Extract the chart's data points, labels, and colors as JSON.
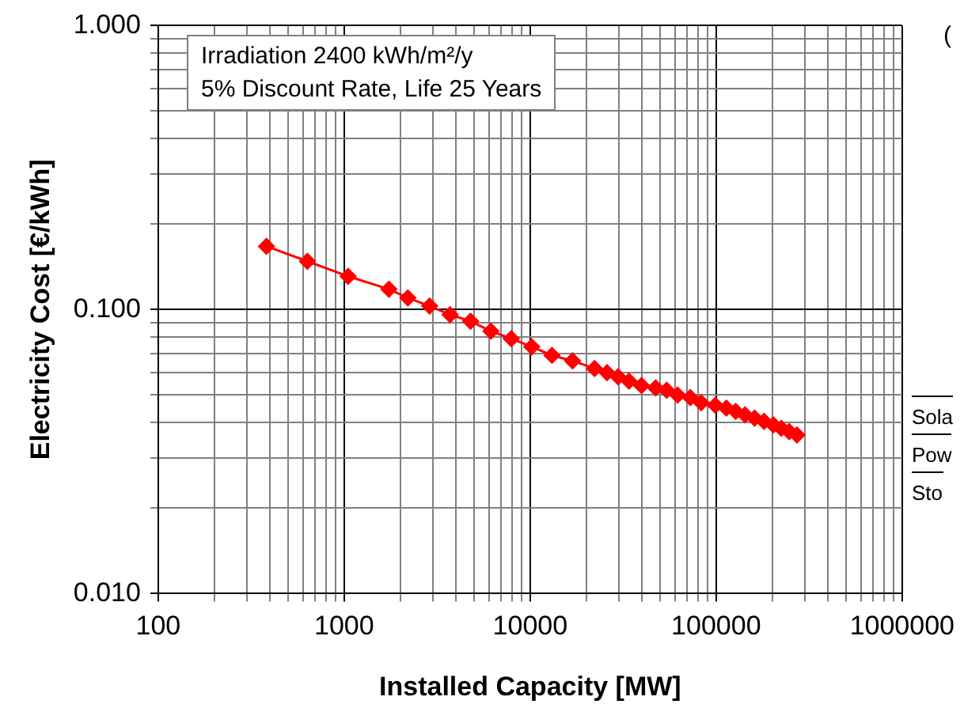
{
  "chart_data": {
    "type": "line",
    "xlabel": "Installed Capacity [MW]",
    "ylabel": "Electricity Cost [€/kWh]",
    "log": "xy",
    "grid": true,
    "legend": false,
    "marker": "diamond",
    "line_style": "solid",
    "annotations": [
      "Irradiation 2400 kWh/m²/y\n5% Discount Rate, Life 25 Years",
      "(",
      "Sola",
      "Pow",
      "Sto"
    ],
    "xlim": [
      100,
      1000000
    ],
    "ylim": [
      0.01,
      1
    ],
    "xticks": [
      100,
      {
        "value": 200,
        "label": null
      },
      {
        "value": 300,
        "label": null
      },
      {
        "value": 400,
        "label": null
      },
      {
        "value": 500,
        "label": null
      },
      {
        "value": 600,
        "label": null
      },
      {
        "value": 700,
        "label": null
      },
      {
        "value": 800,
        "label": null
      },
      {
        "value": 900,
        "label": null
      },
      1000,
      {
        "value": 2000,
        "label": null
      },
      {
        "value": 3000,
        "label": null
      },
      {
        "value": 4000,
        "label": null
      },
      {
        "value": 5000,
        "label": null
      },
      {
        "value": 6000,
        "label": null
      },
      {
        "value": 7000,
        "label": null
      },
      {
        "value": 8000,
        "label": null
      },
      {
        "value": 9000,
        "label": null
      },
      10000,
      {
        "value": 20000,
        "label": null
      },
      {
        "value": 30000,
        "label": null
      },
      {
        "value": 40000,
        "label": null
      },
      {
        "value": 50000,
        "label": null
      },
      {
        "value": 60000,
        "label": null
      },
      {
        "value": 70000,
        "label": null
      },
      {
        "value": 80000,
        "label": null
      },
      {
        "value": 90000,
        "label": null
      },
      100000,
      {
        "value": 200000,
        "label": null
      },
      {
        "value": 300000,
        "label": null
      },
      {
        "value": 400000,
        "label": null
      },
      {
        "value": 500000,
        "label": null
      },
      {
        "value": 600000,
        "label": null
      },
      {
        "value": 700000,
        "label": null
      },
      {
        "value": 800000,
        "label": null
      },
      {
        "value": 900000,
        "label": null
      },
      1000000
    ],
    "yticks": [
      {
        "value": 0.01,
        "label": "0.010"
      },
      {
        "value": 0.02,
        "label": null
      },
      {
        "value": 0.03,
        "label": null
      },
      {
        "value": 0.04,
        "label": null
      },
      {
        "value": 0.05,
        "label": null
      },
      {
        "value": 0.06,
        "label": null
      },
      {
        "value": 0.07,
        "label": null
      },
      {
        "value": 0.08,
        "label": null
      },
      {
        "value": 0.09,
        "label": null
      },
      {
        "value": 0.1,
        "label": "0.100"
      },
      {
        "value": 0.2,
        "label": null
      },
      {
        "value": 0.3,
        "label": null
      },
      {
        "value": 0.4,
        "label": null
      },
      {
        "value": 0.5,
        "label": null
      },
      {
        "value": 0.6,
        "label": null
      },
      {
        "value": 0.7,
        "label": null
      },
      {
        "value": 0.8,
        "label": null
      },
      {
        "value": 0.9,
        "label": null
      },
      {
        "value": 1,
        "label": "1.000"
      }
    ],
    "series": [
      {
        "color": "#ff0000",
        "x": [
          382,
          634,
          1050,
          1740,
          2200,
          2880,
          3710,
          4780,
          6150,
          7920,
          10200,
          13100,
          16900,
          22200,
          25900,
          29700,
          34000,
          39700,
          47300,
          54200,
          62100,
          72600,
          83100,
          99000,
          113500,
          127400,
          143000,
          161000,
          181000,
          203000,
          224000,
          247000,
          272000
        ],
        "values": [
          0.167,
          0.148,
          0.131,
          0.118,
          0.11,
          0.103,
          0.096,
          0.091,
          0.084,
          0.079,
          0.074,
          0.069,
          0.066,
          0.062,
          0.06,
          0.058,
          0.056,
          0.054,
          0.053,
          0.052,
          0.05,
          0.049,
          0.047,
          0.046,
          0.045,
          0.0438,
          0.0426,
          0.0415,
          0.0404,
          0.0393,
          0.0382,
          0.0372,
          0.0362
        ]
      }
    ]
  }
}
